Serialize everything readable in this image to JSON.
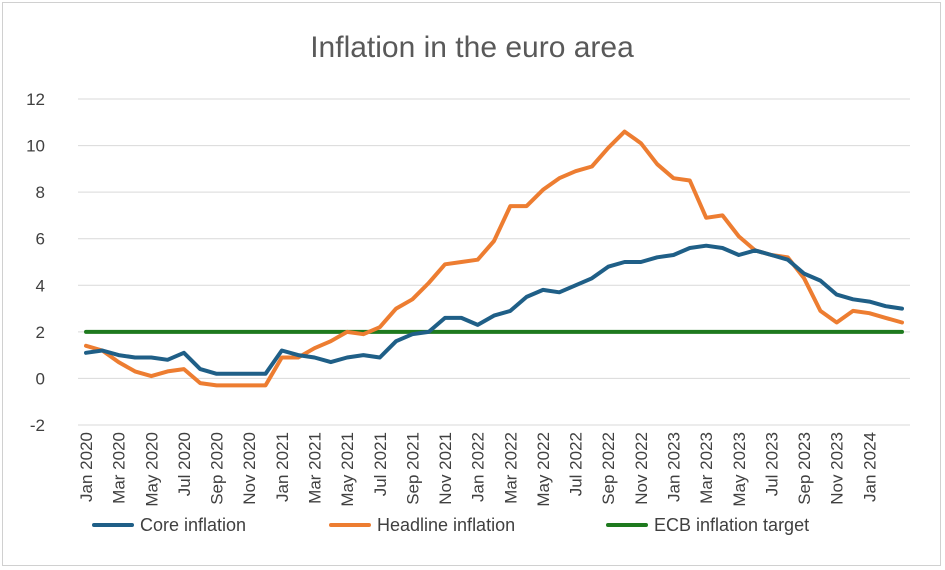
{
  "chart_data": {
    "type": "line",
    "title": "Inflation in the euro area",
    "xlabel": "",
    "ylabel": "",
    "ylim": [
      -2,
      12
    ],
    "yticks": [
      -2,
      0,
      2,
      4,
      6,
      8,
      10,
      12
    ],
    "grid": true,
    "legend_position": "bottom",
    "x_tick_labels": [
      "Jan 2020",
      "Mar 2020",
      "May 2020",
      "Jul 2020",
      "Sep 2020",
      "Nov 2020",
      "Jan 2021",
      "Mar 2021",
      "May 2021",
      "Jul 2021",
      "Sep 2021",
      "Nov 2021",
      "Jan 2022",
      "Mar 2022",
      "May 2022",
      "Jul 2022",
      "Sep 2022",
      "Nov 2022",
      "Jan 2023",
      "Mar 2023",
      "May 2023",
      "Jul 2023",
      "Sep 2023",
      "Nov 2023",
      "Jan 2024"
    ],
    "series": [
      {
        "name": "Core inflation",
        "color": "#1f5f87",
        "values": [
          1.1,
          1.2,
          1.0,
          0.9,
          0.9,
          0.8,
          1.1,
          0.4,
          0.2,
          0.2,
          0.2,
          0.2,
          1.2,
          1.0,
          0.9,
          0.7,
          0.9,
          1.0,
          0.9,
          1.6,
          1.9,
          2.0,
          2.6,
          2.6,
          2.3,
          2.7,
          2.9,
          3.5,
          3.8,
          3.7,
          4.0,
          4.3,
          4.8,
          5.0,
          5.0,
          5.2,
          5.3,
          5.6,
          5.7,
          5.6,
          5.3,
          5.5,
          5.3,
          5.1,
          4.5,
          4.2,
          3.6,
          3.4,
          3.3,
          3.1,
          3.0
        ]
      },
      {
        "name": "Headline inflation",
        "color": "#ed7d31",
        "values": [
          1.4,
          1.2,
          0.7,
          0.3,
          0.1,
          0.3,
          0.4,
          -0.2,
          -0.3,
          -0.3,
          -0.3,
          -0.3,
          0.9,
          0.9,
          1.3,
          1.6,
          2.0,
          1.9,
          2.2,
          3.0,
          3.4,
          4.1,
          4.9,
          5.0,
          5.1,
          5.9,
          7.4,
          7.4,
          8.1,
          8.6,
          8.9,
          9.1,
          9.9,
          10.6,
          10.1,
          9.2,
          8.6,
          8.5,
          6.9,
          7.0,
          6.1,
          5.5,
          5.3,
          5.2,
          4.3,
          2.9,
          2.4,
          2.9,
          2.8,
          2.6,
          2.4
        ]
      },
      {
        "name": "ECB inflation target",
        "color": "#1e7a1e",
        "values": [
          2,
          2,
          2,
          2,
          2,
          2,
          2,
          2,
          2,
          2,
          2,
          2,
          2,
          2,
          2,
          2,
          2,
          2,
          2,
          2,
          2,
          2,
          2,
          2,
          2,
          2,
          2,
          2,
          2,
          2,
          2,
          2,
          2,
          2,
          2,
          2,
          2,
          2,
          2,
          2,
          2,
          2,
          2,
          2,
          2,
          2,
          2,
          2,
          2,
          2,
          2
        ]
      }
    ]
  }
}
